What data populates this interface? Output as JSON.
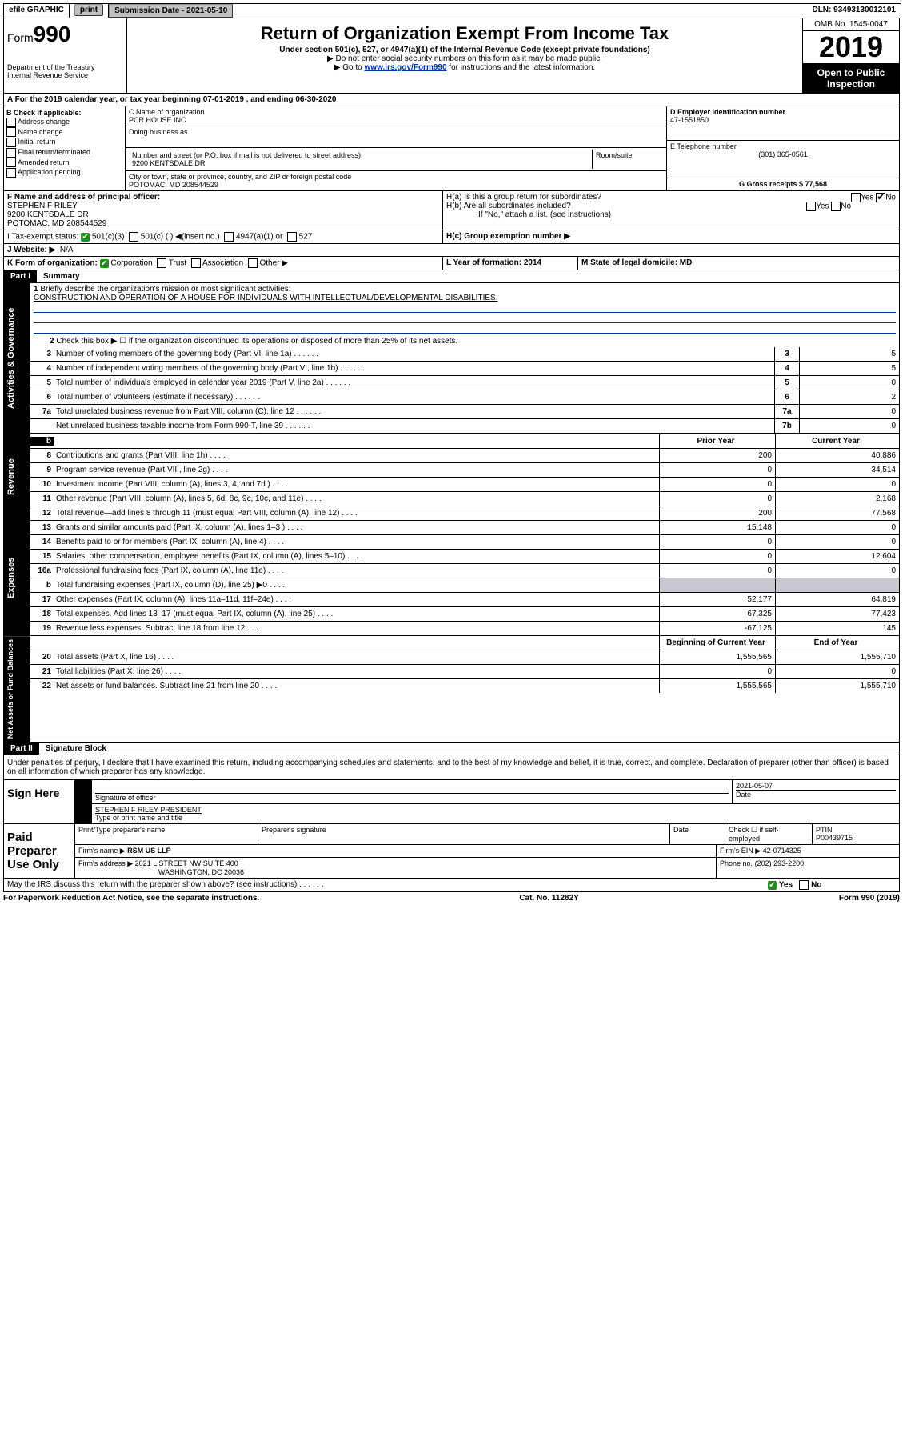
{
  "topbar": {
    "efile": "efile GRAPHIC",
    "print": "print",
    "subdate_label": "Submission Date - 2021-05-10",
    "dln": "DLN: 93493130012101"
  },
  "header": {
    "form": "Form",
    "formno": "990",
    "title": "Return of Organization Exempt From Income Tax",
    "sub1": "Under section 501(c), 527, or 4947(a)(1) of the Internal Revenue Code (except private foundations)",
    "sub2": "▶ Do not enter social security numbers on this form as it may be made public.",
    "sub3_pre": "▶ Go to ",
    "sub3_link": "www.irs.gov/Form990",
    "sub3_post": " for instructions and the latest information.",
    "dept": "Department of the Treasury\nInternal Revenue Service",
    "omb": "OMB No. 1545-0047",
    "year": "2019",
    "open": "Open to Public Inspection"
  },
  "rowA": "A   For the 2019 calendar year, or tax year beginning 07-01-2019    , and ending 06-30-2020",
  "boxB": {
    "title": "B Check if applicable:",
    "items": [
      "Address change",
      "Name change",
      "Initial return",
      "Final return/terminated",
      "Amended return",
      "Application pending"
    ]
  },
  "boxC": {
    "name_label": "C Name of organization",
    "name": "PCR HOUSE INC",
    "dba_label": "Doing business as",
    "addr_label": "Number and street (or P.O. box if mail is not delivered to street address)",
    "room_label": "Room/suite",
    "addr": "9200 KENTSDALE DR",
    "city_label": "City or town, state or province, country, and ZIP or foreign postal code",
    "city": "POTOMAC, MD  208544529"
  },
  "boxD": {
    "d_label": "D Employer identification number",
    "d_val": "47-1551850",
    "e_label": "E Telephone number",
    "e_val": "(301) 365-0561",
    "g_label": "G Gross receipts $ 77,568"
  },
  "boxF": {
    "label": "F  Name and address of principal officer:",
    "name": "STEPHEN F RILEY",
    "addr1": "9200 KENTSDALE DR",
    "addr2": "POTOMAC, MD  208544529"
  },
  "boxH": {
    "a": "H(a)  Is this a group return for subordinates?",
    "b": "H(b)  Are all subordinates included?",
    "b2": "If \"No,\" attach a list. (see instructions)",
    "c": "H(c)  Group exemption number ▶",
    "yes": "Yes",
    "no": "No"
  },
  "rowI": {
    "label": "I    Tax-exempt status:",
    "opts": [
      "501(c)(3)",
      "501(c) (  ) ◀(insert no.)",
      "4947(a)(1) or",
      "527"
    ]
  },
  "rowJ": {
    "label": "J    Website: ▶",
    "val": "N/A"
  },
  "rowK": {
    "label": "K Form of organization:",
    "opts": [
      "Corporation",
      "Trust",
      "Association",
      "Other ▶"
    ],
    "l_label": "L Year of formation: 2014",
    "m_label": "M State of legal domicile: MD"
  },
  "part1": {
    "title": "Part I",
    "subtitle": "Summary",
    "q1_num": "1",
    "q1": "Briefly describe the organization's mission or most significant activities:",
    "q1_ans": "CONSTRUCTION AND OPERATION OF A HOUSE FOR INDIVIDUALS WITH INTELLECTUAL/DEVELOPMENTAL DISABILITIES.",
    "q2_num": "2",
    "q2": "Check this box ▶ ☐  if the organization discontinued its operations or disposed of more than 25% of its net assets."
  },
  "gov_lines": [
    {
      "n": "3",
      "d": "Number of voting members of the governing body (Part VI, line 1a)",
      "box": "3",
      "v": "5"
    },
    {
      "n": "4",
      "d": "Number of independent voting members of the governing body (Part VI, line 1b)",
      "box": "4",
      "v": "5"
    },
    {
      "n": "5",
      "d": "Total number of individuals employed in calendar year 2019 (Part V, line 2a)",
      "box": "5",
      "v": "0"
    },
    {
      "n": "6",
      "d": "Total number of volunteers (estimate if necessary)",
      "box": "6",
      "v": "2"
    },
    {
      "n": "7a",
      "d": "Total unrelated business revenue from Part VIII, column (C), line 12",
      "box": "7a",
      "v": "0"
    },
    {
      "n": "",
      "d": "Net unrelated business taxable income from Form 990-T, line 39",
      "box": "7b",
      "v": "0"
    }
  ],
  "colheads": {
    "prior": "Prior Year",
    "curr": "Current Year",
    "begin": "Beginning of Current Year",
    "end": "End of Year"
  },
  "rev_lines": [
    {
      "n": "8",
      "d": "Contributions and grants (Part VIII, line 1h)",
      "p": "200",
      "c": "40,886"
    },
    {
      "n": "9",
      "d": "Program service revenue (Part VIII, line 2g)",
      "p": "0",
      "c": "34,514"
    },
    {
      "n": "10",
      "d": "Investment income (Part VIII, column (A), lines 3, 4, and 7d )",
      "p": "0",
      "c": "0"
    },
    {
      "n": "11",
      "d": "Other revenue (Part VIII, column (A), lines 5, 6d, 8c, 9c, 10c, and 11e)",
      "p": "0",
      "c": "2,168"
    },
    {
      "n": "12",
      "d": "Total revenue—add lines 8 through 11 (must equal Part VIII, column (A), line 12)",
      "p": "200",
      "c": "77,568"
    }
  ],
  "exp_lines": [
    {
      "n": "13",
      "d": "Grants and similar amounts paid (Part IX, column (A), lines 1–3 )",
      "p": "15,148",
      "c": "0"
    },
    {
      "n": "14",
      "d": "Benefits paid to or for members (Part IX, column (A), line 4)",
      "p": "0",
      "c": "0"
    },
    {
      "n": "15",
      "d": "Salaries, other compensation, employee benefits (Part IX, column (A), lines 5–10)",
      "p": "0",
      "c": "12,604"
    },
    {
      "n": "16a",
      "d": "Professional fundraising fees (Part IX, column (A), line 11e)",
      "p": "0",
      "c": "0"
    },
    {
      "n": "b",
      "d": "Total fundraising expenses (Part IX, column (D), line 25)  ▶0",
      "p": "",
      "c": "",
      "shaded": true
    },
    {
      "n": "17",
      "d": "Other expenses (Part IX, column (A), lines 11a–11d, 11f–24e)",
      "p": "52,177",
      "c": "64,819"
    },
    {
      "n": "18",
      "d": "Total expenses. Add lines 13–17 (must equal Part IX, column (A), line 25)",
      "p": "67,325",
      "c": "77,423"
    },
    {
      "n": "19",
      "d": "Revenue less expenses. Subtract line 18 from line 12",
      "p": "-67,125",
      "c": "145"
    }
  ],
  "net_lines": [
    {
      "n": "20",
      "d": "Total assets (Part X, line 16)",
      "p": "1,555,565",
      "c": "1,555,710"
    },
    {
      "n": "21",
      "d": "Total liabilities (Part X, line 26)",
      "p": "0",
      "c": "0"
    },
    {
      "n": "22",
      "d": "Net assets or fund balances. Subtract line 21 from line 20",
      "p": "1,555,565",
      "c": "1,555,710"
    }
  ],
  "vlabels": {
    "gov": "Activities & Governance",
    "rev": "Revenue",
    "exp": "Expenses",
    "net": "Net Assets or Fund Balances"
  },
  "part2": {
    "title": "Part II",
    "subtitle": "Signature Block",
    "text": "Under penalties of perjury, I declare that I have examined this return, including accompanying schedules and statements, and to the best of my knowledge and belief, it is true, correct, and complete. Declaration of preparer (other than officer) is based on all information of which preparer has any knowledge."
  },
  "sign": {
    "here": "Sign Here",
    "sig_label": "Signature of officer",
    "date_label": "Date",
    "date": "2021-05-07",
    "name": "STEPHEN F RILEY PRESIDENT",
    "name_label": "Type or print name and title"
  },
  "paid": {
    "here": "Paid Preparer Use Only",
    "h1": "Print/Type preparer's name",
    "h2": "Preparer's signature",
    "h3": "Date",
    "h4": "Check ☐ if self-employed",
    "h5_label": "PTIN",
    "h5": "P00439715",
    "firm_label": "Firm's name    ▶",
    "firm": "RSM US LLP",
    "ein_label": "Firm's EIN ▶",
    "ein": "42-0714325",
    "addr_label": "Firm's address ▶",
    "addr1": "2021 L STREET NW SUITE 400",
    "addr2": "WASHINGTON, DC  20036",
    "phone_label": "Phone no.",
    "phone": "(202) 293-2200"
  },
  "bottom": {
    "q": "May the IRS discuss this return with the preparer shown above? (see instructions)",
    "yes": "Yes",
    "no": "No",
    "paperwork": "For Paperwork Reduction Act Notice, see the separate instructions.",
    "cat": "Cat. No. 11282Y",
    "form": "Form 990 (2019)"
  }
}
